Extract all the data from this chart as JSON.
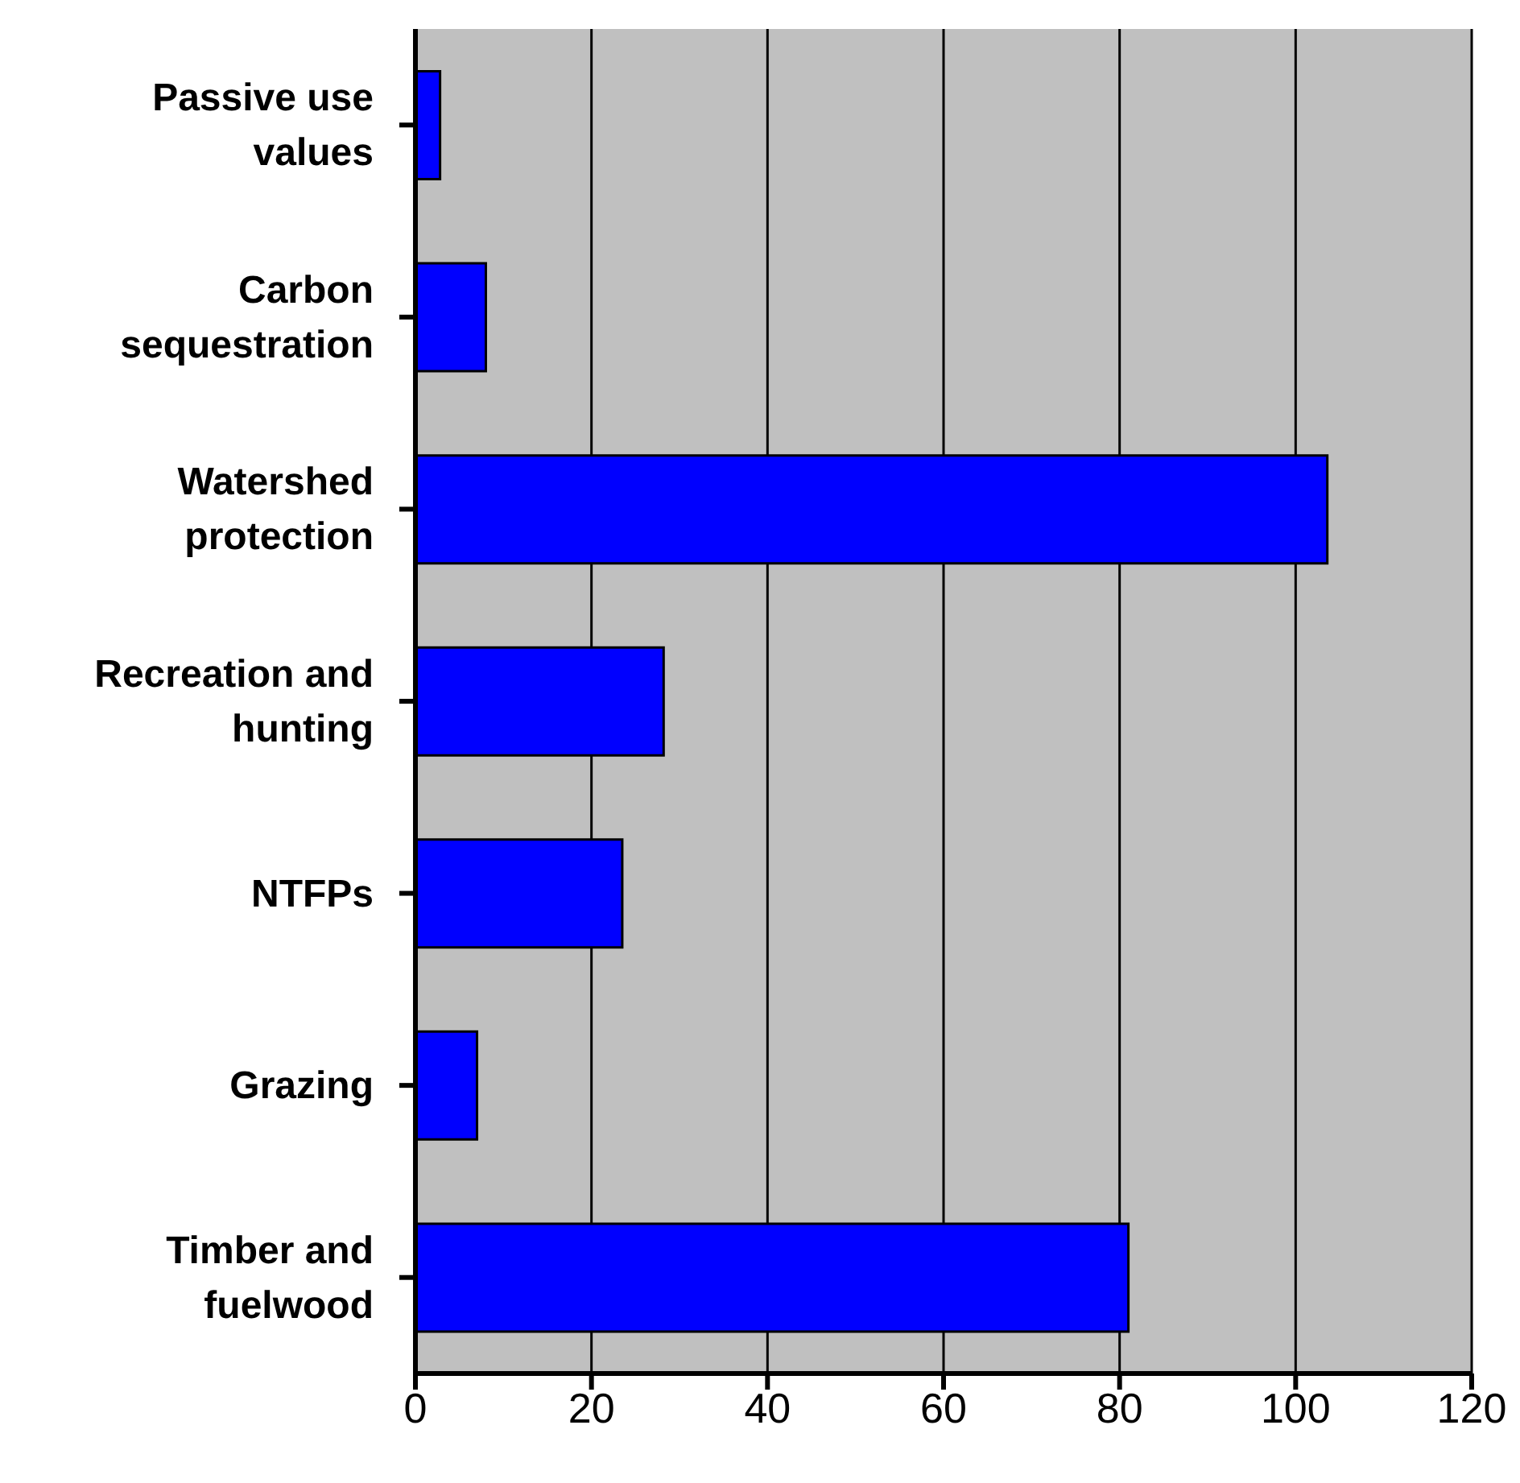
{
  "chart_data": {
    "type": "bar",
    "orientation": "horizontal",
    "categories": [
      "Passive use values",
      "Carbon sequestration",
      "Watershed protection",
      "Recreation and hunting",
      "NTFPs",
      "Grazing",
      "Timber and fuelwood"
    ],
    "values": [
      2.8,
      8.0,
      103.6,
      28.2,
      23.5,
      7.0,
      81.0
    ],
    "color": "#0000ff",
    "xlim": [
      0,
      120
    ],
    "xticks": [
      0,
      20,
      40,
      60,
      80,
      100,
      120
    ],
    "grid": "x"
  }
}
